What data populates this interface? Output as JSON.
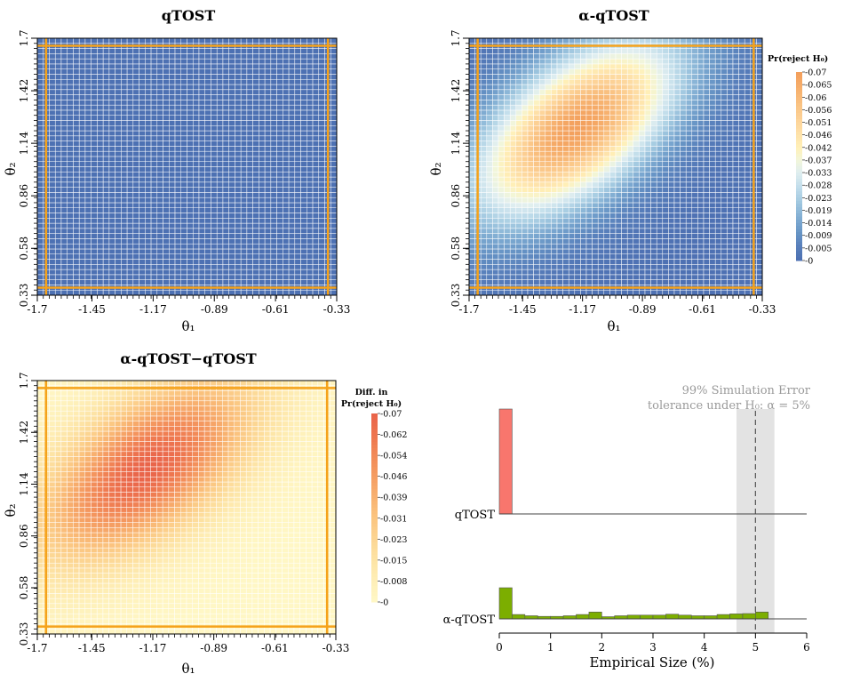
{
  "chart_data": [
    {
      "type": "heatmap",
      "title": "qTOST",
      "xlabel": "θ₁",
      "ylabel": "θ₂",
      "x_ticks": [
        "-1.7",
        "-1.45",
        "-1.17",
        "-0.89",
        "-0.61",
        "-0.33"
      ],
      "y_ticks": [
        "0.33",
        "0.58",
        "0.86",
        "1.14",
        "1.42",
        "1.7"
      ],
      "xlim": [
        -1.7,
        -0.33
      ],
      "ylim": [
        0.33,
        1.7
      ],
      "grid_size": [
        50,
        50
      ],
      "value_description": "Pr(reject H0) approximately 0 everywhere",
      "peak_value": 0,
      "reference_lines": {
        "vertical": [
          -1.66,
          -0.37
        ],
        "horizontal": [
          0.37,
          1.66
        ]
      }
    },
    {
      "type": "heatmap",
      "title": "α-qTOST",
      "xlabel": "θ₁",
      "ylabel": "θ₂",
      "x_ticks": [
        "-1.7",
        "-1.45",
        "-1.17",
        "-0.89",
        "-0.61",
        "-0.33"
      ],
      "y_ticks": [
        "0.33",
        "0.58",
        "0.86",
        "1.14",
        "1.42",
        "1.7"
      ],
      "xlim": [
        -1.7,
        -0.33
      ],
      "ylim": [
        0.33,
        1.7
      ],
      "grid_size": [
        50,
        50
      ],
      "peak_location": [
        -1.2,
        1.22
      ],
      "peak_value": 0.068,
      "reference_lines": {
        "vertical": [
          -1.66,
          -0.37
        ],
        "horizontal": [
          0.37,
          1.66
        ]
      },
      "legend": {
        "title": "Pr(reject H₀)",
        "labels": [
          "0.07",
          "0.065",
          "0.06",
          "0.056",
          "0.051",
          "0.046",
          "0.042",
          "0.037",
          "0.033",
          "0.028",
          "0.023",
          "0.019",
          "0.014",
          "0.009",
          "0.005",
          "0"
        ],
        "colors": [
          "#f3a05d",
          "#f6ad6a",
          "#f8bb7a",
          "#fbc98b",
          "#fdd69c",
          "#fee3ab",
          "#fff0b8",
          "#f2f6d9",
          "#e0eef0",
          "#c6e0ec",
          "#acd0e4",
          "#92bcda",
          "#79a6cf",
          "#6592c4",
          "#587fbb",
          "#4e71b3"
        ]
      }
    },
    {
      "type": "heatmap",
      "title": "α-qTOST−qTOST",
      "xlabel": "θ₁",
      "ylabel": "θ₂",
      "x_ticks": [
        "-1.7",
        "-1.45",
        "-1.17",
        "-0.89",
        "-0.61",
        "-0.33"
      ],
      "y_ticks": [
        "0.33",
        "0.58",
        "0.86",
        "1.14",
        "1.42",
        "1.7"
      ],
      "xlim": [
        -1.7,
        -0.33
      ],
      "ylim": [
        0.33,
        1.7
      ],
      "grid_size": [
        50,
        50
      ],
      "peak_location": [
        -1.2,
        1.22
      ],
      "peak_value": 0.068,
      "reference_lines": {
        "vertical": [
          -1.66,
          -0.37
        ],
        "horizontal": [
          0.37,
          1.66
        ]
      },
      "legend": {
        "title_line1": "Diff. in",
        "title_line2": "Pr(reject H₀)",
        "labels": [
          "0.07",
          "0.062",
          "0.054",
          "0.046",
          "0.039",
          "0.031",
          "0.023",
          "0.015",
          "0.008",
          "0"
        ],
        "colors": [
          "#e9644a",
          "#ee764f",
          "#f28a58",
          "#f59e63",
          "#f8b270",
          "#fbc580",
          "#fcd592",
          "#fde3a4",
          "#feeeb6",
          "#fff7c5"
        ]
      }
    },
    {
      "type": "bar",
      "xlabel": "Empirical Size (%)",
      "x_ticks": [
        "0",
        "1",
        "2",
        "3",
        "4",
        "5",
        "6"
      ],
      "xlim": [
        0,
        6
      ],
      "annotation_line1": "99% Simulation Error",
      "annotation_line2": "tolerance under H₀: α = 5%",
      "reference_value": 5,
      "tolerance_band": [
        4.63,
        5.37
      ],
      "series": [
        {
          "name": "qTOST",
          "color": "#f8766d",
          "bin_width": 0.25,
          "bins_start": [
            0
          ],
          "relative_heights": [
            1.0
          ]
        },
        {
          "name": "α-qTOST",
          "color": "#7cae00",
          "bin_width": 0.25,
          "bins_start": [
            0,
            0.25,
            0.5,
            0.75,
            1.0,
            1.25,
            1.5,
            1.75,
            2.0,
            2.25,
            2.5,
            2.75,
            3.0,
            3.25,
            3.5,
            3.75,
            4.0,
            4.25,
            4.5,
            4.75,
            5.0
          ],
          "relative_heights": [
            1.0,
            0.14,
            0.1,
            0.08,
            0.08,
            0.1,
            0.14,
            0.22,
            0.07,
            0.1,
            0.12,
            0.12,
            0.12,
            0.15,
            0.12,
            0.1,
            0.1,
            0.14,
            0.16,
            0.17,
            0.22
          ]
        }
      ]
    }
  ]
}
